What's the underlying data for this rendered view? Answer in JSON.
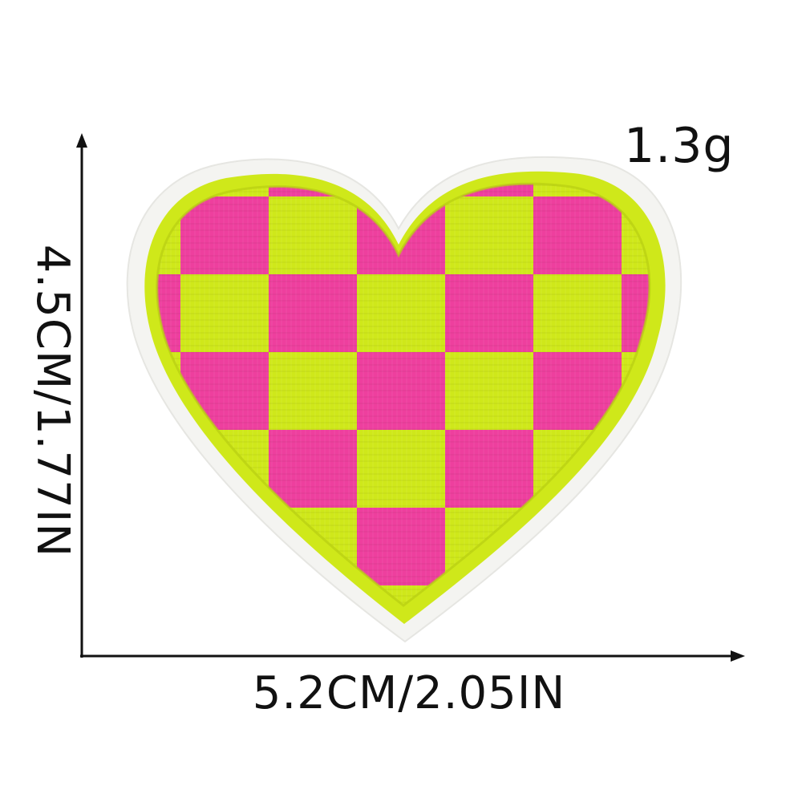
{
  "measurements": {
    "weight": "1.3g",
    "width": "5.2CM/2.05IN",
    "height": "4.5CM/1.77IN"
  },
  "colors": {
    "pink": "#ee3f9e",
    "lime": "#cfe81a",
    "felt": "#f4f4f1",
    "axis": "#111111"
  }
}
